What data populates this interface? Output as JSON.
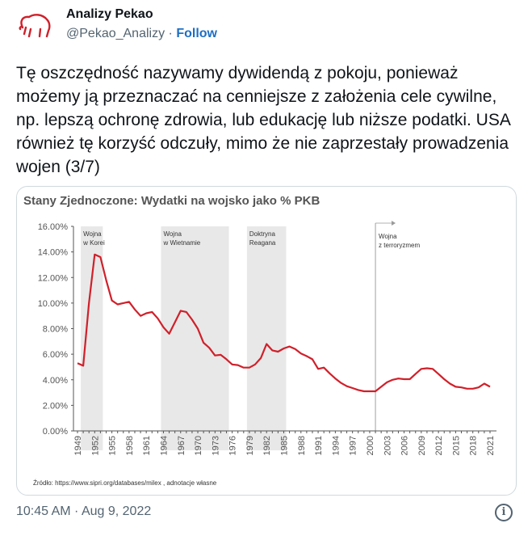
{
  "author": {
    "name": "Analizy Pekao",
    "handle": "@Pekao_Analizy",
    "separator": "·",
    "follow_label": "Follow",
    "logo_color": "#d0202a"
  },
  "tweet_text": "Tę oszczędność nazywamy dywidendą z pokoju, ponieważ możemy ją przeznaczać na cenniejsze z założenia cele cywilne, np. lepszą ochronę zdrowia, lub edukację lub niższe podatki. USA również tę korzyść odczuły, mimo że nie zaprzestały prowadzenia wojen (3/7)",
  "timestamp": "10:45 AM · Aug 9, 2022",
  "info_icon": "i",
  "chart_data": {
    "type": "line",
    "title": "Stany Zjednoczone: Wydatki na wojsko jako % PKB",
    "source": "Źródło: https://www.sipri.org/databases/milex , adnotacje własne",
    "line_color": "#d0202a",
    "ylim": [
      0,
      16
    ],
    "yticks": [
      "0.00%",
      "2.00%",
      "4.00%",
      "6.00%",
      "8.00%",
      "10.00%",
      "12.00%",
      "14.00%",
      "16.00%"
    ],
    "x_start": 1949,
    "xtick_labels": [
      "1949",
      "1952",
      "1955",
      "1958",
      "1961",
      "1964",
      "1967",
      "1970",
      "1973",
      "1976",
      "1979",
      "1982",
      "1985",
      "1988",
      "1991",
      "1994",
      "1997",
      "2000",
      "2003",
      "2006",
      "2009",
      "2012",
      "2015",
      "2018",
      "2021"
    ],
    "values": [
      5.3,
      5.1,
      10.0,
      13.8,
      13.6,
      11.8,
      10.2,
      9.9,
      10.0,
      10.1,
      9.5,
      9.0,
      9.2,
      9.3,
      8.8,
      8.1,
      7.6,
      8.5,
      9.4,
      9.3,
      8.7,
      8.0,
      6.9,
      6.5,
      5.9,
      5.95,
      5.6,
      5.2,
      5.15,
      4.95,
      4.95,
      5.2,
      5.7,
      6.8,
      6.3,
      6.2,
      6.45,
      6.6,
      6.4,
      6.05,
      5.85,
      5.6,
      4.85,
      4.95,
      4.5,
      4.1,
      3.75,
      3.5,
      3.35,
      3.2,
      3.1,
      3.1,
      3.1,
      3.45,
      3.8,
      4.0,
      4.1,
      4.05,
      4.05,
      4.45,
      4.85,
      4.9,
      4.85,
      4.45,
      4.05,
      3.7,
      3.45,
      3.4,
      3.3,
      3.3,
      3.4,
      3.7,
      3.45
    ],
    "annotations": [
      {
        "label1": "Wojna",
        "label2": "w Korei",
        "from": 1950,
        "to": 1953,
        "shaded": true
      },
      {
        "label1": "Wojna",
        "label2": "w Wietnamie",
        "from": 1964,
        "to": 1975,
        "shaded": true
      },
      {
        "label1": "Doktryna",
        "label2": "Reagana",
        "from": 1979,
        "to": 1985,
        "shaded": true
      },
      {
        "label1": "Wojna",
        "label2": "z terroryzmem",
        "from": 2001,
        "to": null,
        "shaded": false
      }
    ]
  }
}
